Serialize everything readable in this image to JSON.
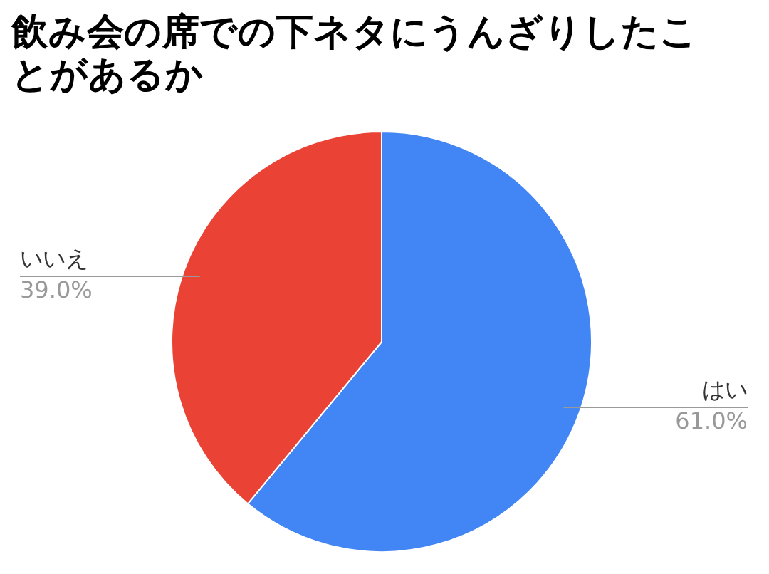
{
  "chart_data": {
    "type": "pie",
    "title": "飲み会の席での下ネタにうんざりしたことがあるか",
    "categories": [
      "はい",
      "いいえ"
    ],
    "values": [
      61,
      39
    ],
    "colors": [
      "#4285f4",
      "#ea4335"
    ],
    "value_labels": [
      "61.0%",
      "39.0%"
    ],
    "legend": false
  }
}
